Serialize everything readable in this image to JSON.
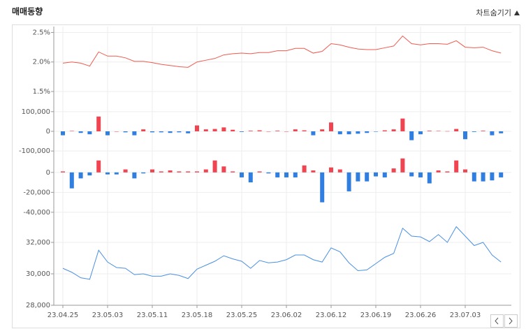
{
  "title": "매매동향",
  "toggle_label": "차트숨기기",
  "chart_data": [
    {
      "type": "line",
      "color": "#f05a4f",
      "ylim": [
        1.5,
        2.6
      ],
      "yticks": [
        {
          "value": 1.5,
          "label": "1.5%"
        },
        {
          "value": 2.0,
          "label": "2.0%"
        },
        {
          "value": 2.5,
          "label": "2.5%"
        }
      ],
      "values": [
        1.98,
        2.0,
        1.98,
        1.93,
        2.17,
        2.1,
        2.1,
        2.07,
        2.01,
        2.01,
        1.99,
        1.96,
        1.94,
        1.92,
        1.91,
        2.0,
        2.03,
        2.06,
        2.12,
        2.14,
        2.15,
        2.14,
        2.16,
        2.16,
        2.19,
        2.19,
        2.23,
        2.23,
        2.15,
        2.18,
        2.31,
        2.29,
        2.25,
        2.22,
        2.21,
        2.21,
        2.24,
        2.27,
        2.44,
        2.31,
        2.29,
        2.31,
        2.31,
        2.3,
        2.36,
        2.25,
        2.24,
        2.25,
        2.19,
        2.15
      ]
    },
    {
      "type": "bar",
      "up_color": "#f04451",
      "down_color": "#2f7ee0",
      "ylim": [
        -110000,
        110000
      ],
      "yticks": [
        {
          "value": -100000,
          "label": "-100,000"
        },
        0,
        {
          "value": 100000,
          "label": "100,000"
        }
      ],
      "values": [
        -20000,
        2000,
        -8000,
        -15000,
        75000,
        -20000,
        0,
        -5000,
        -20000,
        10000,
        -5000,
        -5000,
        -8000,
        -5000,
        -10000,
        30000,
        10000,
        12000,
        20000,
        8000,
        -3000,
        3000,
        5000,
        0,
        3000,
        0,
        10000,
        5000,
        -20000,
        10000,
        45000,
        -15000,
        -15000,
        -12000,
        -8000,
        -2000,
        5000,
        10000,
        65000,
        -45000,
        -15000,
        3000,
        2000,
        1000,
        12000,
        -40000,
        -3000,
        3000,
        -20000,
        -10000
      ]
    },
    {
      "type": "bar",
      "up_color": "#f04451",
      "down_color": "#2f7ee0",
      "ylim": [
        -45000,
        16000
      ],
      "yticks": [
        {
          "value": -40000,
          "label": "-40,000"
        },
        {
          "value": -20000,
          "label": "-20,000"
        },
        0
      ],
      "values": [
        1000,
        -16000,
        -6000,
        -3000,
        12000,
        -2000,
        -2000,
        3000,
        -6000,
        -1000,
        3000,
        1000,
        2000,
        1000,
        1000,
        1000,
        3000,
        12000,
        6000,
        1000,
        -5000,
        -10000,
        1000,
        -1000,
        -5000,
        -5000,
        -5000,
        7000,
        2000,
        -30000,
        5000,
        3000,
        -19000,
        -9000,
        -9000,
        -4000,
        -5000,
        4000,
        14000,
        -4000,
        -5000,
        -11000,
        2000,
        1000,
        12000,
        3000,
        -9000,
        -9000,
        -8000,
        -5000
      ]
    },
    {
      "type": "line",
      "color": "#4a90e2",
      "ylim": [
        28000,
        33200
      ],
      "yticks": [
        {
          "value": 28000,
          "label": "28,000"
        },
        {
          "value": 30000,
          "label": "30,000"
        },
        {
          "value": 32000,
          "label": "32,000"
        }
      ],
      "categories": [
        "23.04.25",
        null,
        null,
        null,
        null,
        "23.05.03",
        null,
        null,
        null,
        null,
        "23.05.11",
        null,
        null,
        null,
        null,
        "23.05.18",
        null,
        null,
        null,
        null,
        "23.05.25",
        null,
        null,
        null,
        null,
        "23.06.02",
        null,
        null,
        null,
        null,
        "23.06.12",
        null,
        null,
        null,
        null,
        "23.06.19",
        null,
        null,
        null,
        null,
        "23.06.26",
        null,
        null,
        null,
        null,
        "23.07.03",
        null,
        null,
        null,
        null
      ],
      "values": [
        30350,
        30100,
        29750,
        29650,
        31500,
        30750,
        30400,
        30350,
        29950,
        30000,
        29850,
        29850,
        30000,
        29900,
        29700,
        30300,
        30550,
        30800,
        31150,
        30950,
        30800,
        30350,
        30850,
        30700,
        30750,
        30900,
        31200,
        31200,
        30900,
        30750,
        31650,
        31400,
        30700,
        30200,
        30250,
        30650,
        31050,
        31300,
        32900,
        32400,
        32350,
        32050,
        32500,
        32000,
        33000,
        32400,
        31800,
        32000,
        31200,
        30750
      ]
    }
  ]
}
